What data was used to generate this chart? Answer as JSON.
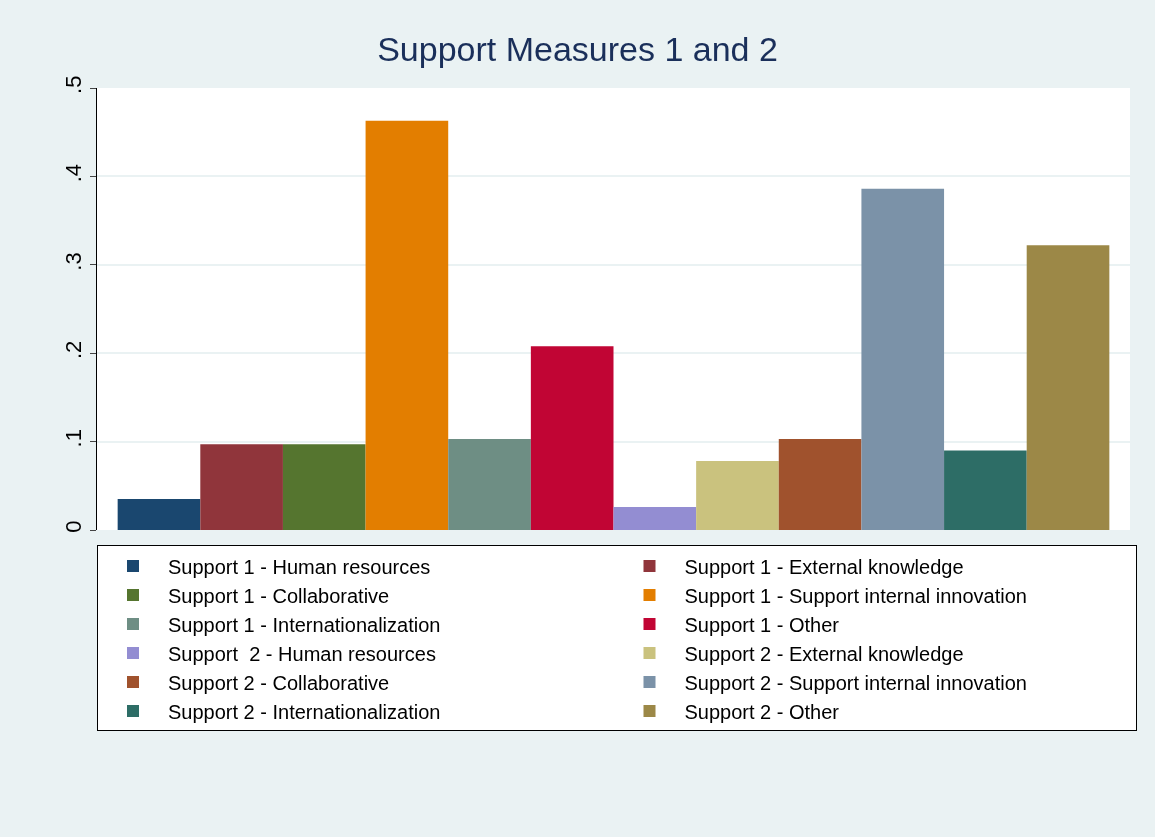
{
  "chart_data": {
    "type": "bar",
    "title": "Support Measures 1 and 2",
    "categories": [
      null
    ],
    "series": [
      {
        "name": "Support 1 - Human resources",
        "color": "#1a476f",
        "values": [
          0.035
        ]
      },
      {
        "name": "Support 1 - External knowledge",
        "color": "#90353b",
        "values": [
          0.097
        ]
      },
      {
        "name": "Support 1 - Collaborative",
        "color": "#55752f",
        "values": [
          0.097
        ]
      },
      {
        "name": "Support 1 - Support internal innovation",
        "color": "#e37e00",
        "values": [
          0.463
        ]
      },
      {
        "name": "Support 1 - Internationalization",
        "color": "#6e8e84",
        "values": [
          0.103
        ]
      },
      {
        "name": "Support 1 - Other",
        "color": "#c10534",
        "values": [
          0.208
        ]
      },
      {
        "name": "Support  2 - Human resources",
        "color": "#938dd2",
        "values": [
          0.026
        ]
      },
      {
        "name": "Support 2 - External knowledge",
        "color": "#cac27e",
        "values": [
          0.078
        ]
      },
      {
        "name": "Support 2 - Collaborative",
        "color": "#a0522d",
        "values": [
          0.103
        ]
      },
      {
        "name": "Support 2 - Support internal innovation",
        "color": "#7b92a8",
        "values": [
          0.386
        ]
      },
      {
        "name": "Support 2 - Internationalization",
        "color": "#2d6d66",
        "values": [
          0.09
        ]
      },
      {
        "name": "Support 2 - Other",
        "color": "#9c8847",
        "values": [
          0.322
        ]
      }
    ],
    "ylim": [
      0,
      0.5
    ],
    "yticks": [
      {
        "value": 0,
        "label": "0"
      },
      {
        "value": 0.1,
        "label": ".1"
      },
      {
        "value": 0.2,
        "label": ".2"
      },
      {
        "value": 0.3,
        "label": ".3"
      },
      {
        "value": 0.4,
        "label": ".4"
      },
      {
        "value": 0.5,
        "label": ".5"
      }
    ],
    "grid": "y",
    "legend": "bottom",
    "tick_labels": "y"
  }
}
